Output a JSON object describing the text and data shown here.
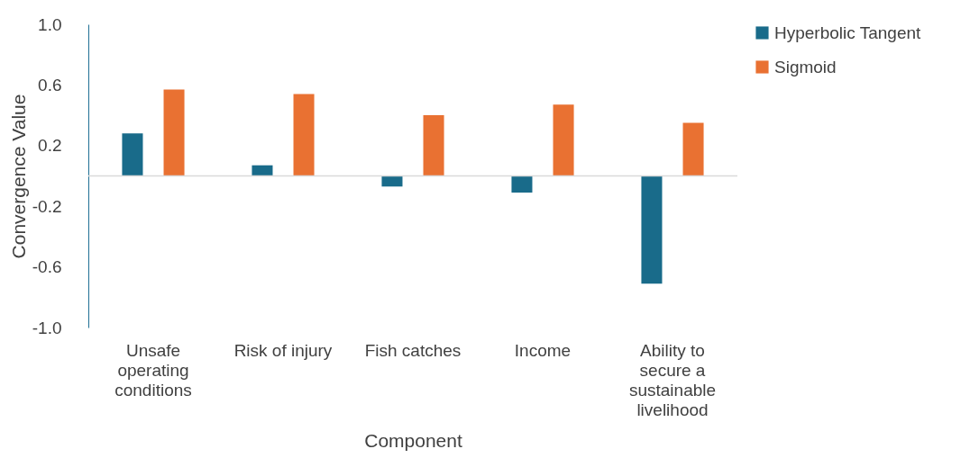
{
  "chart_data": {
    "type": "bar",
    "xlabel": "Component",
    "ylabel": "Convergence Value",
    "categories": [
      "Unsafe operating conditions",
      "Risk of injury",
      "Fish catches",
      "Income",
      "Ability to secure a sustainable livelihood"
    ],
    "series": [
      {
        "name": "Hyperbolic Tangent",
        "color": "#196b8a",
        "values": [
          0.28,
          0.07,
          -0.07,
          -0.11,
          -0.71
        ]
      },
      {
        "name": "Sigmoid",
        "color": "#e97132",
        "values": [
          0.57,
          0.54,
          0.4,
          0.47,
          0.35
        ]
      }
    ],
    "ylim": [
      -1.0,
      1.0
    ],
    "yticks": [
      {
        "value": -1.0,
        "label": "-1.0"
      },
      {
        "value": -0.6,
        "label": "-0.6"
      },
      {
        "value": -0.2,
        "label": "-0.2"
      },
      {
        "value": 0.2,
        "label": "0.2"
      },
      {
        "value": 0.6,
        "label": "0.6"
      },
      {
        "value": 1.0,
        "label": "1.0"
      }
    ],
    "ref_lines": [
      {
        "axis": "y",
        "value": 0,
        "color": "#d9d9d9"
      }
    ],
    "grid": false,
    "legend": "right"
  }
}
